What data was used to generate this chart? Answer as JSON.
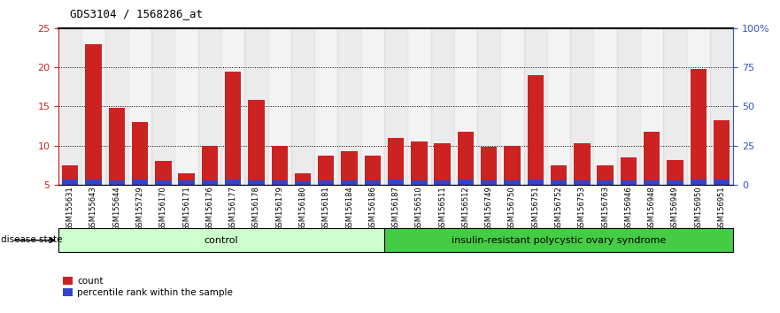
{
  "title": "GDS3104 / 1568286_at",
  "samples": [
    "GSM155631",
    "GSM155643",
    "GSM155644",
    "GSM155729",
    "GSM156170",
    "GSM156171",
    "GSM156176",
    "GSM156177",
    "GSM156178",
    "GSM156179",
    "GSM156180",
    "GSM156181",
    "GSM156184",
    "GSM156186",
    "GSM156187",
    "GSM156510",
    "GSM156511",
    "GSM156512",
    "GSM156749",
    "GSM156750",
    "GSM156751",
    "GSM156752",
    "GSM156753",
    "GSM156763",
    "GSM156946",
    "GSM156948",
    "GSM156949",
    "GSM156950",
    "GSM156951"
  ],
  "count_values": [
    7.5,
    23.0,
    14.8,
    13.0,
    8.0,
    6.5,
    10.0,
    19.5,
    15.8,
    10.0,
    6.5,
    8.7,
    9.3,
    8.7,
    11.0,
    10.5,
    10.3,
    11.8,
    9.8,
    10.0,
    19.0,
    7.5,
    10.3,
    7.5,
    8.5,
    11.8,
    8.2,
    19.8,
    13.2
  ],
  "percentile_values": [
    5.7,
    5.7,
    5.6,
    5.7,
    5.6,
    5.5,
    5.6,
    5.7,
    5.6,
    5.5,
    5.4,
    5.5,
    5.5,
    5.5,
    5.7,
    5.6,
    5.6,
    5.7,
    5.6,
    5.6,
    5.7,
    5.6,
    5.6,
    5.5,
    5.6,
    5.6,
    5.6,
    5.7,
    5.7
  ],
  "n_control": 14,
  "control_label": "control",
  "disease_label": "insulin-resistant polycystic ovary syndrome",
  "ylim_left": [
    5,
    25
  ],
  "ylim_right": [
    0,
    100
  ],
  "yticks_left": [
    5,
    10,
    15,
    20,
    25
  ],
  "yticks_right": [
    0,
    25,
    50,
    75,
    100
  ],
  "bar_color_red": "#cc2222",
  "bar_color_blue": "#3344cc",
  "control_bg": "#ccffcc",
  "disease_bg": "#44cc44",
  "bar_width": 0.7,
  "ylabel_left_color": "#cc2222",
  "ylabel_right_color": "#3355cc",
  "legend_count_label": "count",
  "legend_pct_label": "percentile rank within the sample"
}
